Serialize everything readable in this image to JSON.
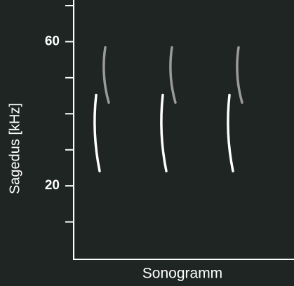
{
  "chart_data": {
    "type": "sonogram",
    "ylabel": "Sagedus [kHz]",
    "xlabel": "Sonogramm",
    "ylim": [
      0,
      70
    ],
    "yticks": [
      20,
      60
    ],
    "minor_yticks": [
      10,
      30,
      40,
      50,
      70
    ],
    "calls": [
      {
        "color": "#ffffff",
        "start": [
          45.2,
          45.2,
          45.2
        ],
        "end": [
          24.1,
          24.1,
          24.1
        ]
      },
      {
        "color": "#9a9a9a",
        "start": [
          58.4,
          58.4,
          58.4
        ],
        "end": [
          43.1,
          43.1,
          43.1
        ]
      }
    ]
  }
}
